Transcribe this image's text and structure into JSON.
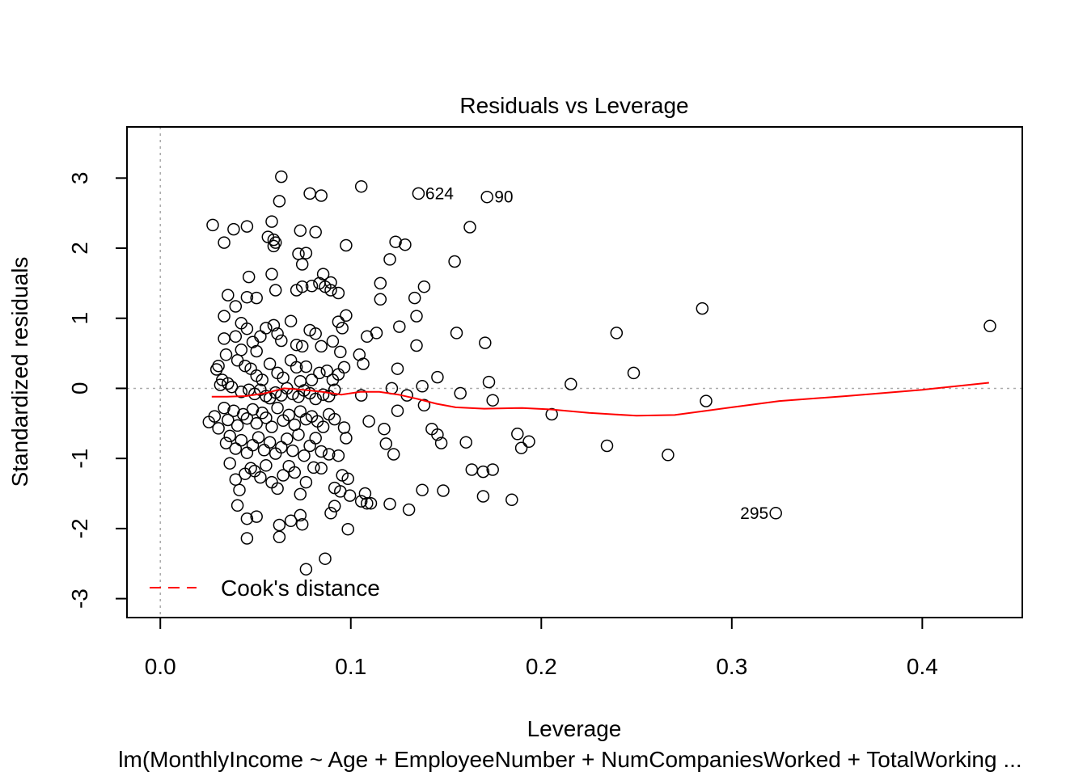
{
  "chart_data": {
    "type": "scatter",
    "title": "Residuals vs Leverage",
    "xlabel": "Leverage",
    "ylabel": "Standardized residuals",
    "subtitle": "lm(MonthlyIncome ~ Age + EmployeeNumber + NumCompaniesWorked + TotalWorking ...",
    "xlim": [
      -0.0175,
      0.4525
    ],
    "ylim": [
      -3.27,
      3.73
    ],
    "x_ticks": [
      0.0,
      0.1,
      0.2,
      0.3,
      0.4
    ],
    "x_tick_labels": [
      "0.0",
      "0.1",
      "0.2",
      "0.3",
      "0.4"
    ],
    "y_ticks": [
      -3,
      -2,
      -1,
      0,
      1,
      2,
      3
    ],
    "y_tick_labels": [
      "-3",
      "-2",
      "-1",
      "0",
      "1",
      "2",
      "3"
    ],
    "reference_lines": {
      "h": 0,
      "v": 0,
      "style": "dotted",
      "color": "#aaaaaa"
    },
    "point_color": "#000000",
    "smooth_color": "#ff0000",
    "legend": {
      "position": "bottom-left",
      "entries": [
        {
          "label": "Cook's distance",
          "color": "#ff0000",
          "style": "dashed"
        }
      ]
    },
    "labeled_points": [
      {
        "label": "624",
        "x": 0.1353,
        "y": 2.78,
        "side": "right"
      },
      {
        "label": "90",
        "x": 0.1715,
        "y": 2.73,
        "side": "right"
      },
      {
        "label": "295",
        "x": 0.3231,
        "y": -1.78,
        "side": "left"
      }
    ],
    "points": [
      [
        0.0275,
        2.33
      ],
      [
        0.0335,
        2.08
      ],
      [
        0.0385,
        2.27
      ],
      [
        0.0455,
        2.31
      ],
      [
        0.0635,
        3.02
      ],
      [
        0.0625,
        2.67
      ],
      [
        0.0585,
        2.38
      ],
      [
        0.0565,
        2.16
      ],
      [
        0.0595,
        2.12
      ],
      [
        0.0605,
        2.08
      ],
      [
        0.0595,
        2.03
      ],
      [
        0.0735,
        2.25
      ],
      [
        0.0785,
        2.78
      ],
      [
        0.0845,
        2.75
      ],
      [
        0.0815,
        2.23
      ],
      [
        0.1055,
        2.88
      ],
      [
        0.0975,
        2.04
      ],
      [
        0.1235,
        2.09
      ],
      [
        0.1285,
        2.05
      ],
      [
        0.1625,
        2.3
      ],
      [
        0.0725,
        1.92
      ],
      [
        0.0765,
        1.93
      ],
      [
        0.0745,
        1.77
      ],
      [
        0.0585,
        1.63
      ],
      [
        0.0465,
        1.59
      ],
      [
        0.0505,
        1.29
      ],
      [
        0.0355,
        1.33
      ],
      [
        0.0395,
        1.17
      ],
      [
        0.0335,
        1.03
      ],
      [
        0.0455,
        1.3
      ],
      [
        0.0605,
        1.4
      ],
      [
        0.0715,
        1.4
      ],
      [
        0.0745,
        1.45
      ],
      [
        0.0795,
        1.46
      ],
      [
        0.0835,
        1.5
      ],
      [
        0.0855,
        1.63
      ],
      [
        0.0895,
        1.51
      ],
      [
        0.0935,
        1.36
      ],
      [
        0.0895,
        1.4
      ],
      [
        0.0865,
        1.45
      ],
      [
        0.1205,
        1.84
      ],
      [
        0.1155,
        1.5
      ],
      [
        0.1155,
        1.27
      ],
      [
        0.1335,
        1.29
      ],
      [
        0.1385,
        1.45
      ],
      [
        0.1345,
        1.03
      ],
      [
        0.1545,
        1.81
      ],
      [
        0.0425,
        0.93
      ],
      [
        0.0455,
        0.85
      ],
      [
        0.0395,
        0.74
      ],
      [
        0.0335,
        0.71
      ],
      [
        0.0425,
        0.55
      ],
      [
        0.0345,
        0.48
      ],
      [
        0.0485,
        0.66
      ],
      [
        0.0505,
        0.53
      ],
      [
        0.0525,
        0.74
      ],
      [
        0.0555,
        0.86
      ],
      [
        0.0595,
        0.9
      ],
      [
        0.0615,
        0.78
      ],
      [
        0.0635,
        0.68
      ],
      [
        0.0685,
        0.96
      ],
      [
        0.0715,
        0.62
      ],
      [
        0.0745,
        0.6
      ],
      [
        0.0785,
        0.83
      ],
      [
        0.0815,
        0.78
      ],
      [
        0.0845,
        0.6
      ],
      [
        0.0905,
        0.67
      ],
      [
        0.0935,
        0.95
      ],
      [
        0.0955,
        0.86
      ],
      [
        0.0975,
        1.04
      ],
      [
        0.0945,
        0.52
      ],
      [
        0.1065,
        0.35
      ],
      [
        0.1045,
        0.48
      ],
      [
        0.1085,
        0.74
      ],
      [
        0.1135,
        0.79
      ],
      [
        0.1255,
        0.88
      ],
      [
        0.1345,
        0.61
      ],
      [
        0.1555,
        0.79
      ],
      [
        0.1705,
        0.65
      ],
      [
        0.0305,
        0.32
      ],
      [
        0.0325,
        0.12
      ],
      [
        0.0355,
        0.07
      ],
      [
        0.0405,
        0.4
      ],
      [
        0.0445,
        0.32
      ],
      [
        0.0475,
        0.28
      ],
      [
        0.0505,
        0.18
      ],
      [
        0.0535,
        0.12
      ],
      [
        0.0575,
        0.35
      ],
      [
        0.0615,
        0.22
      ],
      [
        0.0645,
        0.15
      ],
      [
        0.0685,
        0.4
      ],
      [
        0.0715,
        0.3
      ],
      [
        0.0735,
        0.1
      ],
      [
        0.0765,
        0.31
      ],
      [
        0.0795,
        0.12
      ],
      [
        0.0835,
        0.22
      ],
      [
        0.0875,
        0.25
      ],
      [
        0.0905,
        0.12
      ],
      [
        0.0935,
        0.2
      ],
      [
        0.0965,
        0.3
      ],
      [
        0.0295,
        0.27
      ],
      [
        0.0315,
        0.05
      ],
      [
        0.0375,
        0.02
      ],
      [
        0.0425,
        -0.05
      ],
      [
        0.0465,
        -0.02
      ],
      [
        0.0495,
        -0.08
      ],
      [
        0.0525,
        -0.02
      ],
      [
        0.0555,
        -0.11
      ],
      [
        0.0575,
        -0.14
      ],
      [
        0.0605,
        -0.06
      ],
      [
        0.0635,
        -0.1
      ],
      [
        0.0665,
        0.0
      ],
      [
        0.0695,
        -0.08
      ],
      [
        0.0725,
        -0.12
      ],
      [
        0.0755,
        -0.03
      ],
      [
        0.0785,
        -0.07
      ],
      [
        0.0815,
        -0.15
      ],
      [
        0.0855,
        -0.09
      ],
      [
        0.0885,
        -0.11
      ],
      [
        0.0915,
        -0.02
      ],
      [
        0.1055,
        -0.1
      ],
      [
        0.1245,
        0.28
      ],
      [
        0.1215,
        0.0
      ],
      [
        0.1295,
        -0.1
      ],
      [
        0.1375,
        0.03
      ],
      [
        0.1385,
        -0.24
      ],
      [
        0.1455,
        0.16
      ],
      [
        0.1575,
        -0.07
      ],
      [
        0.1725,
        0.09
      ],
      [
        0.1745,
        -0.17
      ],
      [
        0.2055,
        -0.37
      ],
      [
        0.2155,
        0.06
      ],
      [
        0.2485,
        0.22
      ],
      [
        0.2865,
        -0.18
      ],
      [
        0.2845,
        1.14
      ],
      [
        0.2395,
        0.79
      ],
      [
        0.4355,
        0.89
      ],
      [
        0.0255,
        -0.48
      ],
      [
        0.0285,
        -0.4
      ],
      [
        0.0305,
        -0.57
      ],
      [
        0.0335,
        -0.28
      ],
      [
        0.0355,
        -0.45
      ],
      [
        0.0385,
        -0.32
      ],
      [
        0.0405,
        -0.53
      ],
      [
        0.0435,
        -0.37
      ],
      [
        0.0455,
        -0.43
      ],
      [
        0.0485,
        -0.3
      ],
      [
        0.0505,
        -0.5
      ],
      [
        0.0535,
        -0.35
      ],
      [
        0.0555,
        -0.42
      ],
      [
        0.0585,
        -0.55
      ],
      [
        0.0615,
        -0.28
      ],
      [
        0.0645,
        -0.46
      ],
      [
        0.0675,
        -0.38
      ],
      [
        0.0705,
        -0.52
      ],
      [
        0.0735,
        -0.33
      ],
      [
        0.0765,
        -0.44
      ],
      [
        0.0795,
        -0.4
      ],
      [
        0.0825,
        -0.47
      ],
      [
        0.0855,
        -0.55
      ],
      [
        0.0885,
        -0.37
      ],
      [
        0.0915,
        -0.44
      ],
      [
        0.0965,
        -0.56
      ],
      [
        0.1095,
        -0.47
      ],
      [
        0.1175,
        -0.58
      ],
      [
        0.1245,
        -0.32
      ],
      [
        0.1425,
        -0.58
      ],
      [
        0.1455,
        -0.66
      ],
      [
        0.0345,
        -0.78
      ],
      [
        0.0365,
        -0.68
      ],
      [
        0.0395,
        -0.86
      ],
      [
        0.0425,
        -0.74
      ],
      [
        0.0455,
        -0.92
      ],
      [
        0.0485,
        -0.81
      ],
      [
        0.0515,
        -0.7
      ],
      [
        0.0545,
        -0.88
      ],
      [
        0.0575,
        -0.77
      ],
      [
        0.0605,
        -0.93
      ],
      [
        0.0635,
        -0.84
      ],
      [
        0.0665,
        -0.72
      ],
      [
        0.0695,
        -0.89
      ],
      [
        0.0725,
        -0.66
      ],
      [
        0.0755,
        -0.96
      ],
      [
        0.0785,
        -0.82
      ],
      [
        0.0815,
        -0.71
      ],
      [
        0.0845,
        -0.9
      ],
      [
        0.0885,
        -0.94
      ],
      [
        0.0935,
        -0.96
      ],
      [
        0.0975,
        -0.71
      ],
      [
        0.1185,
        -0.79
      ],
      [
        0.1225,
        -0.94
      ],
      [
        0.1475,
        -0.78
      ],
      [
        0.1605,
        -0.77
      ],
      [
        0.1875,
        -0.65
      ],
      [
        0.1895,
        -0.85
      ],
      [
        0.1935,
        -0.76
      ],
      [
        0.2345,
        -0.82
      ],
      [
        0.2665,
        -0.95
      ],
      [
        0.0365,
        -1.07
      ],
      [
        0.0395,
        -1.3
      ],
      [
        0.0415,
        -1.45
      ],
      [
        0.0445,
        -1.22
      ],
      [
        0.0475,
        -1.14
      ],
      [
        0.0495,
        -1.18
      ],
      [
        0.0525,
        -1.27
      ],
      [
        0.0555,
        -1.1
      ],
      [
        0.0585,
        -1.34
      ],
      [
        0.0615,
        -1.43
      ],
      [
        0.0645,
        -1.24
      ],
      [
        0.0675,
        -1.11
      ],
      [
        0.0705,
        -1.2
      ],
      [
        0.0735,
        -1.51
      ],
      [
        0.0765,
        -1.34
      ],
      [
        0.0805,
        -1.13
      ],
      [
        0.0845,
        -1.14
      ],
      [
        0.0915,
        -1.42
      ],
      [
        0.0945,
        -1.47
      ],
      [
        0.0955,
        -1.24
      ],
      [
        0.0985,
        -1.29
      ],
      [
        0.0995,
        -1.53
      ],
      [
        0.1075,
        -1.5
      ],
      [
        0.1055,
        -1.61
      ],
      [
        0.1085,
        -1.64
      ],
      [
        0.1105,
        -1.64
      ],
      [
        0.1205,
        -1.65
      ],
      [
        0.1305,
        -1.73
      ],
      [
        0.1375,
        -1.45
      ],
      [
        0.1485,
        -1.46
      ],
      [
        0.1635,
        -1.16
      ],
      [
        0.1695,
        -1.19
      ],
      [
        0.1745,
        -1.16
      ],
      [
        0.1695,
        -1.54
      ],
      [
        0.1845,
        -1.59
      ],
      [
        0.0405,
        -1.67
      ],
      [
        0.0455,
        -1.86
      ],
      [
        0.0505,
        -1.83
      ],
      [
        0.0625,
        -1.95
      ],
      [
        0.0685,
        -1.89
      ],
      [
        0.0735,
        -1.81
      ],
      [
        0.0745,
        -1.94
      ],
      [
        0.0895,
        -1.78
      ],
      [
        0.0915,
        -1.68
      ],
      [
        0.0985,
        -2.01
      ],
      [
        0.0455,
        -2.14
      ],
      [
        0.0625,
        -2.12
      ],
      [
        0.0765,
        -2.58
      ],
      [
        0.0865,
        -2.43
      ],
      [
        0.1355,
        2.78
      ],
      [
        0.1715,
        2.73
      ],
      [
        0.3231,
        -1.78
      ]
    ],
    "smooth_line": [
      [
        0.027,
        -0.12
      ],
      [
        0.035,
        -0.12
      ],
      [
        0.045,
        -0.11
      ],
      [
        0.055,
        -0.07
      ],
      [
        0.065,
        0.0
      ],
      [
        0.075,
        -0.02
      ],
      [
        0.085,
        -0.05
      ],
      [
        0.095,
        -0.09
      ],
      [
        0.105,
        -0.05
      ],
      [
        0.115,
        -0.05
      ],
      [
        0.125,
        -0.09
      ],
      [
        0.135,
        -0.15
      ],
      [
        0.145,
        -0.22
      ],
      [
        0.155,
        -0.27
      ],
      [
        0.17,
        -0.29
      ],
      [
        0.19,
        -0.28
      ],
      [
        0.205,
        -0.3
      ],
      [
        0.225,
        -0.35
      ],
      [
        0.25,
        -0.39
      ],
      [
        0.27,
        -0.38
      ],
      [
        0.3,
        -0.27
      ],
      [
        0.325,
        -0.18
      ],
      [
        0.36,
        -0.11
      ],
      [
        0.4,
        -0.02
      ],
      [
        0.435,
        0.08
      ]
    ]
  }
}
